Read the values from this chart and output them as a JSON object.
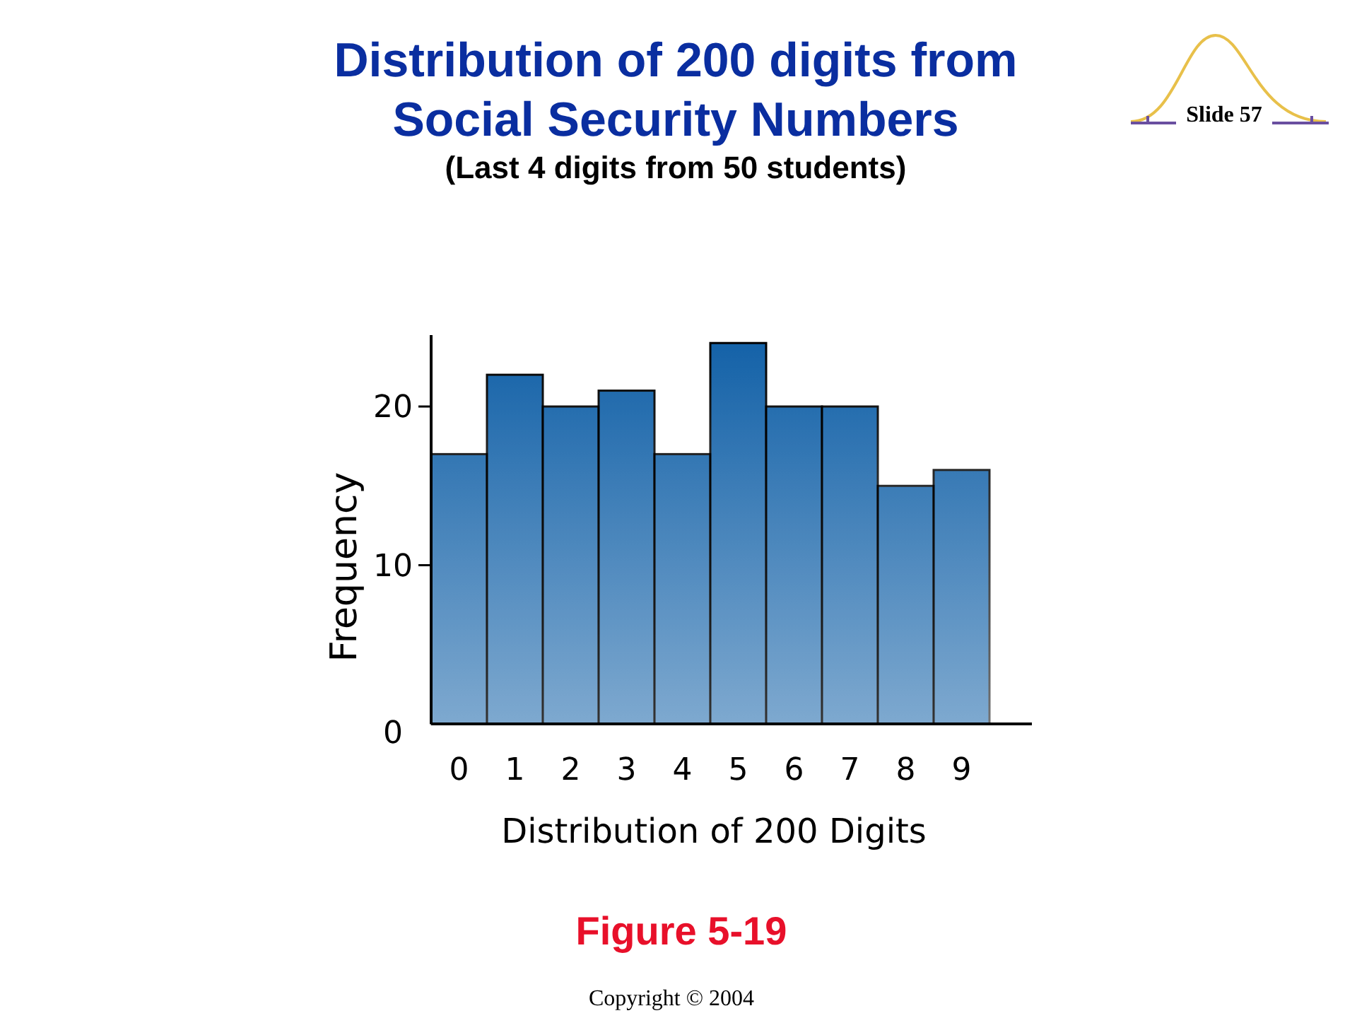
{
  "chart_data": {
    "type": "bar",
    "title": "Distribution of 200 digits from\nSocial Security Numbers",
    "subtitle": "(Last 4 digits from 50 students)",
    "xlabel": "Distribution of 200 Digits",
    "ylabel": "Frequency",
    "categories": [
      "0",
      "1",
      "2",
      "3",
      "4",
      "5",
      "6",
      "7",
      "8",
      "9"
    ],
    "values": [
      17,
      22,
      20,
      21,
      17,
      24,
      20,
      20,
      15,
      16
    ],
    "color": "#1462a8",
    "ylim": [
      0,
      24.5
    ],
    "yticks": [
      0,
      10,
      20
    ],
    "grid": false,
    "annotations": [
      "Slide 57",
      "Figure 5-19",
      "Copyright © 2004"
    ]
  }
}
